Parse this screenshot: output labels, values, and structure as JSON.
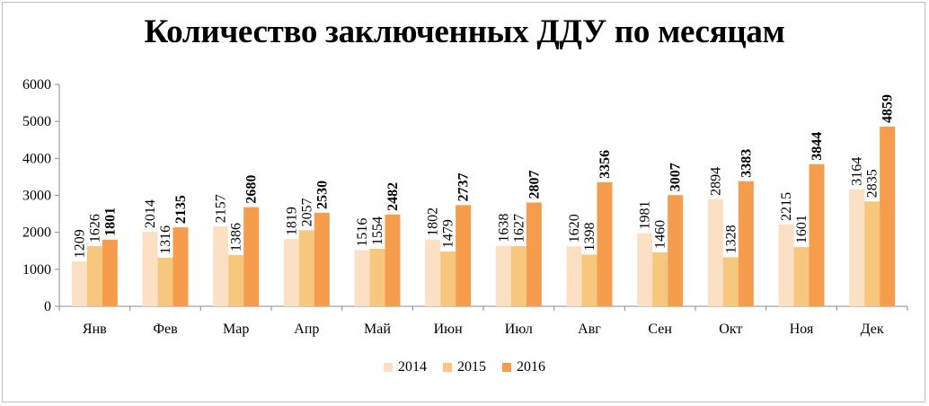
{
  "chart_data": {
    "type": "bar",
    "title": "Количество заключенных ДДУ по месяцам",
    "categories": [
      "Янв",
      "Фев",
      "Мар",
      "Апр",
      "Май",
      "Июн",
      "Июл",
      "Авг",
      "Сен",
      "Окт",
      "Ноя",
      "Дек"
    ],
    "series": [
      {
        "name": "2014",
        "color": "#fbe0c4",
        "values": [
          1209,
          2014,
          2157,
          1819,
          1516,
          1802,
          1638,
          1620,
          1981,
          2894,
          2215,
          3164
        ]
      },
      {
        "name": "2015",
        "color": "#f7c77e",
        "values": [
          1626,
          1316,
          1386,
          2057,
          1554,
          1479,
          1627,
          1398,
          1460,
          1328,
          1601,
          2835
        ]
      },
      {
        "name": "2016",
        "color": "#f59d4d",
        "values": [
          1801,
          2135,
          2680,
          2530,
          2482,
          2737,
          2807,
          3356,
          3007,
          3383,
          3844,
          4859
        ]
      }
    ],
    "ylim": [
      0,
      6000
    ],
    "yticks": [
      0,
      1000,
      2000,
      3000,
      4000,
      5000,
      6000
    ],
    "grid": false,
    "legend_position": "bottom"
  }
}
